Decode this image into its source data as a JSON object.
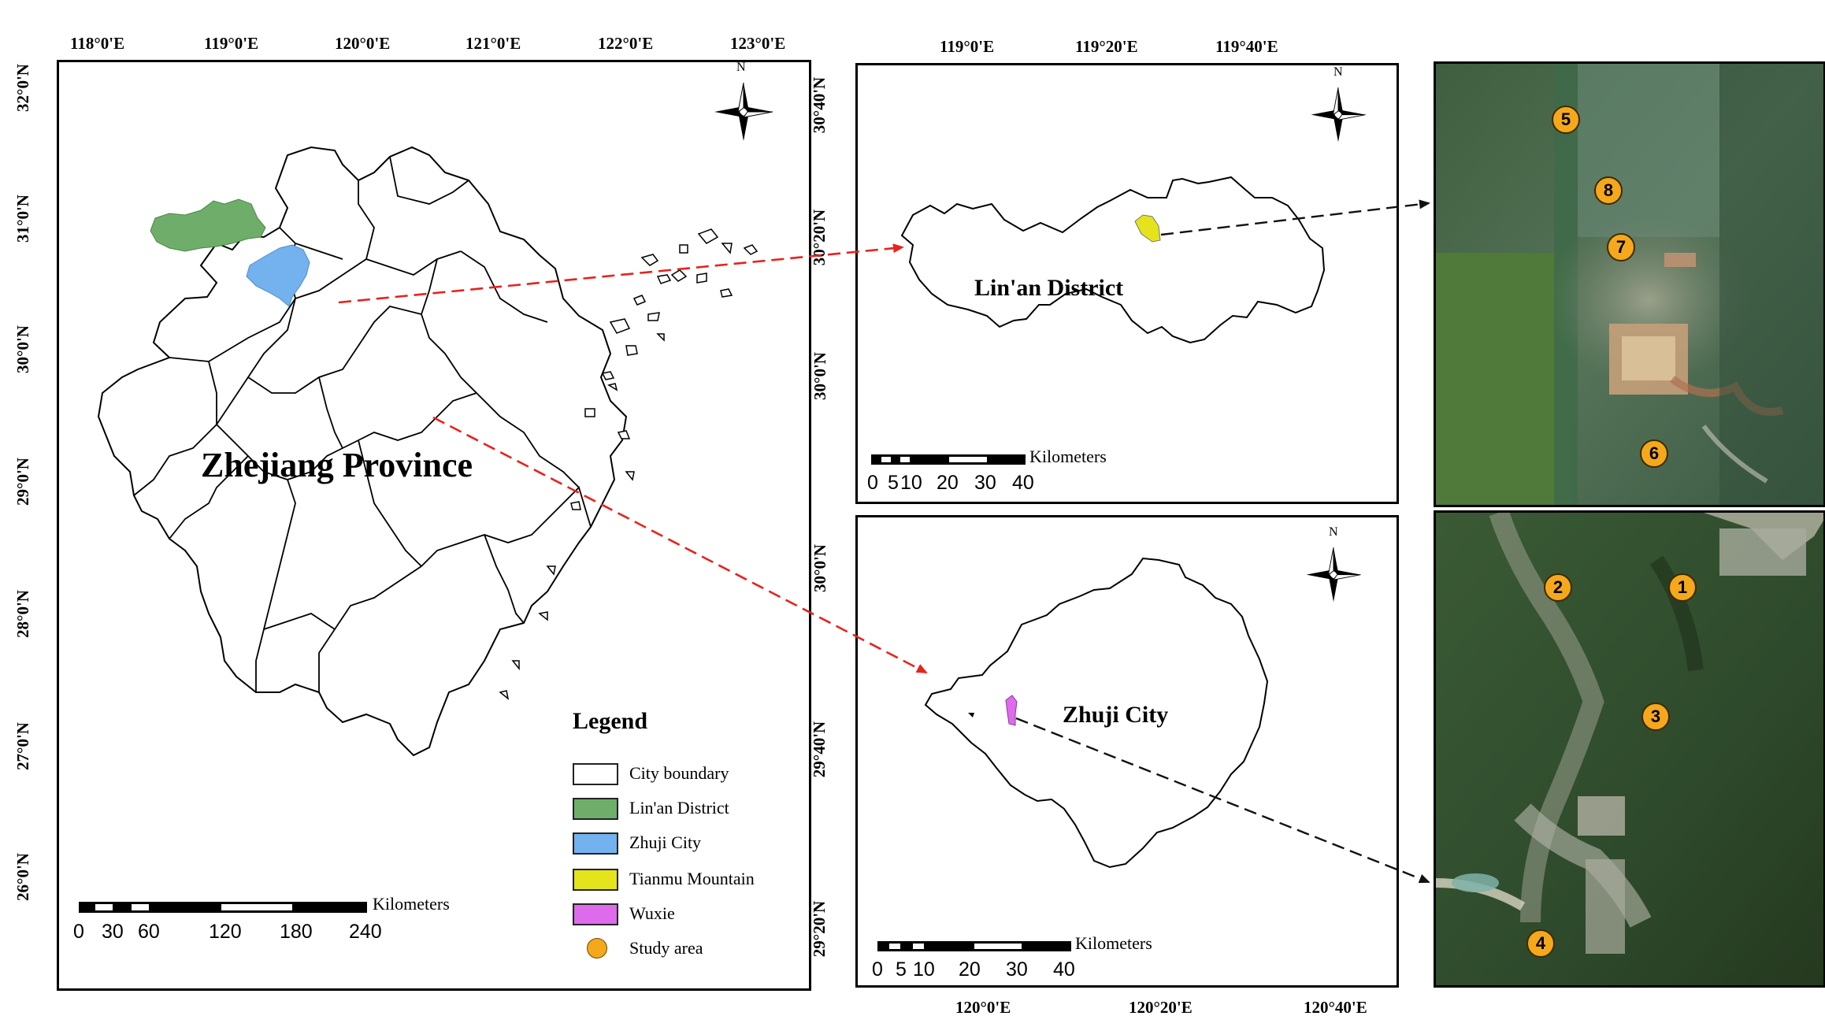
{
  "left_map": {
    "lon_ticks": [
      "118°0'E",
      "119°0'E",
      "120°0'E",
      "121°0'E",
      "122°0'E",
      "123°0'E"
    ],
    "lat_ticks": [
      "32°0'N",
      "31°0'N",
      "30°0'N",
      "29°0'N",
      "28°0'N",
      "27°0'N",
      "26°0'N"
    ],
    "title": "Zhejiang Province",
    "scalebar": {
      "numbers": [
        "0",
        "30",
        "60",
        "120",
        "180",
        "240"
      ],
      "unit": "Kilometers"
    },
    "legend": {
      "title": "Legend",
      "items": [
        {
          "label": "City boundary",
          "color": "#ffffff"
        },
        {
          "label": "Lin'an District",
          "color": "#6fae6a"
        },
        {
          "label": "Zhuji City",
          "color": "#73b2ee"
        },
        {
          "label": "Tianmu Mountain",
          "color": "#e4e31c"
        },
        {
          "label": "Wuxie",
          "color": "#dd6bec"
        },
        {
          "label": "Study area",
          "color": "#f5a81c"
        }
      ]
    },
    "north_label": "N"
  },
  "linan_map": {
    "lon_ticks": [
      "119°0'E",
      "119°20'E",
      "119°40'E"
    ],
    "lat_ticks": [
      "30°40'N",
      "30°20'N",
      "30°0'N"
    ],
    "title": "Lin'an District",
    "scalebar": {
      "numbers": [
        "0",
        "5",
        "10",
        "20",
        "30",
        "40"
      ],
      "unit": "Kilometers"
    },
    "north_label": "N"
  },
  "zhuji_map": {
    "lon_ticks": [
      "120°0'E",
      "120°20'E",
      "120°40'E"
    ],
    "lat_ticks": [
      "30°0'N",
      "29°40'N",
      "29°20'N"
    ],
    "title": "Zhuji City",
    "scalebar": {
      "numbers": [
        "0",
        "5",
        "10",
        "20",
        "30",
        "40"
      ],
      "unit": "Kilometers"
    },
    "north_label": "N"
  },
  "tianmu_image": {
    "markers": [
      "5",
      "8",
      "7",
      "6"
    ]
  },
  "wuxie_image": {
    "markers": [
      "2",
      "1",
      "3",
      "4"
    ]
  },
  "colors": {
    "arrow_red": "#e8221c",
    "arrow_black": "#111111",
    "marker": "#f5a81c"
  }
}
